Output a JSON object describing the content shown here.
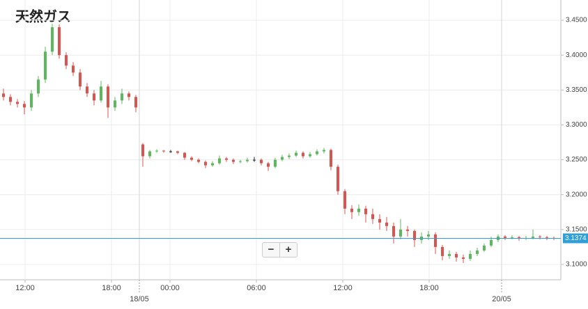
{
  "chart_data": {
    "type": "candlestick",
    "title": "天然ガス",
    "ylim": [
      3.078,
      3.479
    ],
    "yticks": [
      {
        "value": 3.1,
        "label": "3.1000"
      },
      {
        "value": 3.15,
        "label": "3.1500"
      },
      {
        "value": 3.2,
        "label": "3.2000"
      },
      {
        "value": 3.25,
        "label": "3.2500"
      },
      {
        "value": 3.3,
        "label": "3.3000"
      },
      {
        "value": 3.35,
        "label": "3.3500"
      },
      {
        "value": 3.4,
        "label": "3.4000"
      },
      {
        "value": 3.45,
        "label": "3.4500"
      }
    ],
    "xlim": [
      -0.5,
      80
    ],
    "xticks": [
      {
        "value": 3.1,
        "label": "12:00"
      },
      {
        "value": 15.5,
        "label": "18:00"
      },
      {
        "value": 23.9,
        "label": "00:00"
      },
      {
        "value": 36.3,
        "label": "06:00"
      },
      {
        "value": 48.7,
        "label": "12:00"
      },
      {
        "value": 61.1,
        "label": "18:00"
      }
    ],
    "day_breaks": [
      {
        "value": 19.5,
        "label": "18/05"
      },
      {
        "value": 71.5,
        "label": "20/05"
      }
    ],
    "grid": true,
    "up_color": "#5cb85c",
    "down_color": "#d9534f",
    "last_price": 3.1374,
    "last_price_color": "#2e9fd8",
    "candles": [
      [
        3.345,
        3.352,
        3.335,
        3.34
      ],
      [
        3.34,
        3.344,
        3.328,
        3.333
      ],
      [
        3.333,
        3.337,
        3.325,
        3.33
      ],
      [
        3.33,
        3.334,
        3.315,
        3.325
      ],
      [
        3.325,
        3.35,
        3.32,
        3.345
      ],
      [
        3.345,
        3.37,
        3.34,
        3.365
      ],
      [
        3.365,
        3.412,
        3.36,
        3.405
      ],
      [
        3.405,
        3.445,
        3.4,
        3.44
      ],
      [
        3.44,
        3.444,
        3.395,
        3.4
      ],
      [
        3.4,
        3.404,
        3.38,
        3.385
      ],
      [
        3.385,
        3.39,
        3.37,
        3.375
      ],
      [
        3.375,
        3.38,
        3.35,
        3.355
      ],
      [
        3.355,
        3.36,
        3.34,
        3.345
      ],
      [
        3.345,
        3.35,
        3.328,
        3.335
      ],
      [
        3.335,
        3.363,
        3.332,
        3.355
      ],
      [
        3.355,
        3.358,
        3.31,
        3.325
      ],
      [
        3.325,
        3.34,
        3.32,
        3.335
      ],
      [
        3.335,
        3.352,
        3.33,
        3.345
      ],
      [
        3.345,
        3.348,
        3.335,
        3.34
      ],
      [
        3.34,
        3.343,
        3.318,
        3.325
      ],
      [
        3.272,
        3.274,
        3.24,
        3.255
      ],
      [
        3.255,
        3.264,
        3.252,
        3.262
      ],
      [
        3.262,
        3.265,
        3.26,
        3.263
      ],
      [
        3.263,
        3.264,
        3.26,
        3.262
      ],
      [
        3.262,
        3.264,
        3.26,
        3.262
      ],
      [
        3.262,
        3.263,
        3.258,
        3.26
      ],
      [
        3.26,
        3.261,
        3.25,
        3.253
      ],
      [
        3.253,
        3.255,
        3.248,
        3.25
      ],
      [
        3.25,
        3.252,
        3.245,
        3.247
      ],
      [
        3.247,
        3.249,
        3.238,
        3.242
      ],
      [
        3.242,
        3.248,
        3.24,
        3.245
      ],
      [
        3.245,
        3.256,
        3.243,
        3.252
      ],
      [
        3.252,
        3.254,
        3.247,
        3.25
      ],
      [
        3.25,
        3.252,
        3.244,
        3.247
      ],
      [
        3.247,
        3.25,
        3.245,
        3.248
      ],
      [
        3.248,
        3.253,
        3.246,
        3.25
      ],
      [
        3.25,
        3.254,
        3.247,
        3.25
      ],
      [
        3.25,
        3.252,
        3.242,
        3.245
      ],
      [
        3.245,
        3.247,
        3.234,
        3.24
      ],
      [
        3.24,
        3.253,
        3.238,
        3.25
      ],
      [
        3.25,
        3.257,
        3.248,
        3.254
      ],
      [
        3.254,
        3.259,
        3.251,
        3.256
      ],
      [
        3.256,
        3.263,
        3.254,
        3.26
      ],
      [
        3.26,
        3.262,
        3.252,
        3.255
      ],
      [
        3.255,
        3.261,
        3.253,
        3.258
      ],
      [
        3.258,
        3.265,
        3.256,
        3.262
      ],
      [
        3.262,
        3.267,
        3.259,
        3.264
      ],
      [
        3.264,
        3.266,
        3.235,
        3.24
      ],
      [
        3.24,
        3.243,
        3.2,
        3.205
      ],
      [
        3.205,
        3.208,
        3.172,
        3.18
      ],
      [
        3.18,
        3.185,
        3.165,
        3.175
      ],
      [
        3.175,
        3.186,
        3.17,
        3.18
      ],
      [
        3.18,
        3.184,
        3.16,
        3.172
      ],
      [
        3.172,
        3.18,
        3.158,
        3.165
      ],
      [
        3.165,
        3.172,
        3.15,
        3.16
      ],
      [
        3.16,
        3.168,
        3.148,
        3.155
      ],
      [
        3.155,
        3.16,
        3.13,
        3.14
      ],
      [
        3.14,
        3.165,
        3.136,
        3.15
      ],
      [
        3.15,
        3.155,
        3.14,
        3.148
      ],
      [
        3.148,
        3.15,
        3.125,
        3.135
      ],
      [
        3.135,
        3.146,
        3.13,
        3.14
      ],
      [
        3.14,
        3.148,
        3.135,
        3.143
      ],
      [
        3.143,
        3.146,
        3.115,
        3.125
      ],
      [
        3.125,
        3.128,
        3.106,
        3.112
      ],
      [
        3.112,
        3.12,
        3.108,
        3.115
      ],
      [
        3.115,
        3.118,
        3.104,
        3.11
      ],
      [
        3.11,
        3.114,
        3.102,
        3.108
      ],
      [
        3.108,
        3.12,
        3.105,
        3.115
      ],
      [
        3.115,
        3.124,
        3.112,
        3.12
      ],
      [
        3.12,
        3.13,
        3.118,
        3.127
      ],
      [
        3.127,
        3.14,
        3.125,
        3.135
      ],
      [
        3.135,
        3.143,
        3.132,
        3.14
      ],
      [
        3.14,
        3.142,
        3.135,
        3.138
      ],
      [
        3.138,
        3.142,
        3.136,
        3.139
      ],
      [
        3.139,
        3.141,
        3.134,
        3.137
      ],
      [
        3.137,
        3.141,
        3.135,
        3.138
      ],
      [
        3.138,
        3.15,
        3.136,
        3.14
      ],
      [
        3.14,
        3.142,
        3.136,
        3.139
      ],
      [
        3.139,
        3.141,
        3.135,
        3.138
      ],
      [
        3.138,
        3.14,
        3.135,
        3.1374
      ]
    ]
  },
  "controls": {
    "zoom_out": "−",
    "zoom_in": "+"
  }
}
